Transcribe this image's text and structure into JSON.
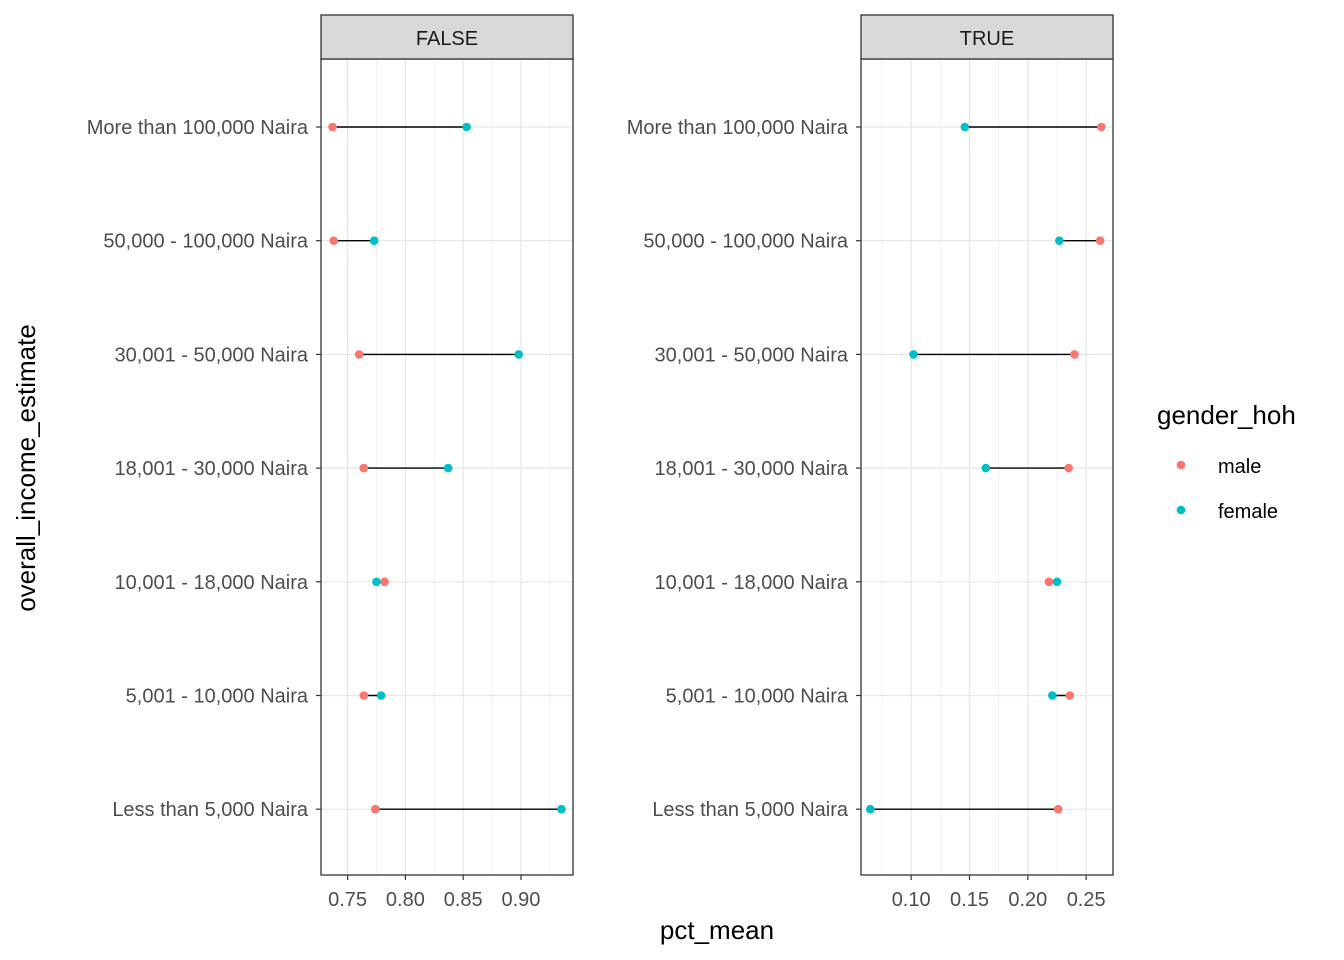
{
  "chart_data": {
    "type": "dumbbell",
    "xlabel": "pct_mean",
    "ylabel": "overall_income_estimate",
    "categories": [
      "More than 100,000 Naira",
      "50,000 - 100,000 Naira",
      "30,001 - 50,000 Naira",
      "18,001 - 30,000 Naira",
      "10,001 - 18,000 Naira",
      "5,001 - 10,000 Naira",
      "Less than 5,000 Naira"
    ],
    "legend": {
      "title": "gender_hoh",
      "placement": "right",
      "entries": [
        {
          "name": "male",
          "color": "#F8766D"
        },
        {
          "name": "female",
          "color": "#00BFC4"
        }
      ]
    },
    "grid": true,
    "panels": [
      {
        "strip": "FALSE",
        "xlim": [
          0.727,
          0.945
        ],
        "xticks": [
          0.75,
          0.8,
          0.85,
          0.9
        ],
        "xtick_labels": [
          "0.75",
          "0.80",
          "0.85",
          "0.90"
        ],
        "series": [
          {
            "name": "male",
            "values": [
              0.737,
              0.738,
              0.76,
              0.764,
              0.782,
              0.764,
              0.774
            ]
          },
          {
            "name": "female",
            "values": [
              0.853,
              0.773,
              0.898,
              0.837,
              0.775,
              0.779,
              0.935
            ]
          }
        ]
      },
      {
        "strip": "TRUE",
        "xlim": [
          0.057,
          0.273
        ],
        "xticks": [
          0.1,
          0.15,
          0.2,
          0.25
        ],
        "xtick_labels": [
          "0.10",
          "0.15",
          "0.20",
          "0.25"
        ],
        "series": [
          {
            "name": "male",
            "values": [
              0.263,
              0.262,
              0.24,
              0.235,
              0.218,
              0.236,
              0.226
            ]
          },
          {
            "name": "female",
            "values": [
              0.146,
              0.227,
              0.102,
              0.164,
              0.225,
              0.221,
              0.065
            ]
          }
        ]
      }
    ]
  }
}
